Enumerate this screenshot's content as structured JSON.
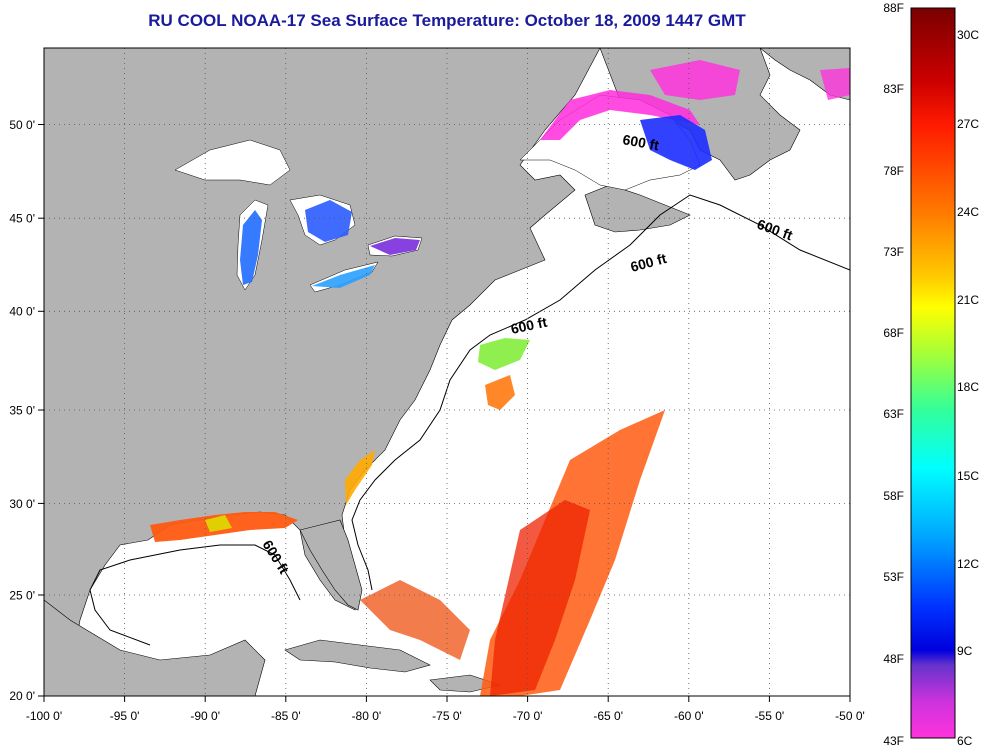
{
  "title": "RU COOL  NOAA-17  Sea Surface Temperature:  October 18, 2009 1447 GMT",
  "map": {
    "lon_ticks": [
      "-100 0'",
      "-95 0'",
      "-90 0'",
      "-85 0'",
      "-80 0'",
      "-75 0'",
      "-70 0'",
      "-65 0'",
      "-60 0'",
      "-55 0'",
      "-50 0'"
    ],
    "lat_ticks": [
      "50 0'",
      "45 0'",
      "40 0'",
      "35 0'",
      "30 0'",
      "25 0'",
      "20 0'"
    ],
    "contour_labels": [
      "600 ft",
      "600 ft",
      "600 ft",
      "600 ft",
      "600 ft"
    ],
    "colors": {
      "land": "#b3b3b3",
      "ocean": "#ffffff",
      "grid": "#555555"
    }
  },
  "colorbar": {
    "f_labels": [
      "88F",
      "83F",
      "78F",
      "73F",
      "68F",
      "63F",
      "58F",
      "53F",
      "48F",
      "43F"
    ],
    "c_labels": [
      "30C",
      "27C",
      "24C",
      "21C",
      "18C",
      "15C",
      "12C",
      "9C",
      "6C"
    ]
  }
}
